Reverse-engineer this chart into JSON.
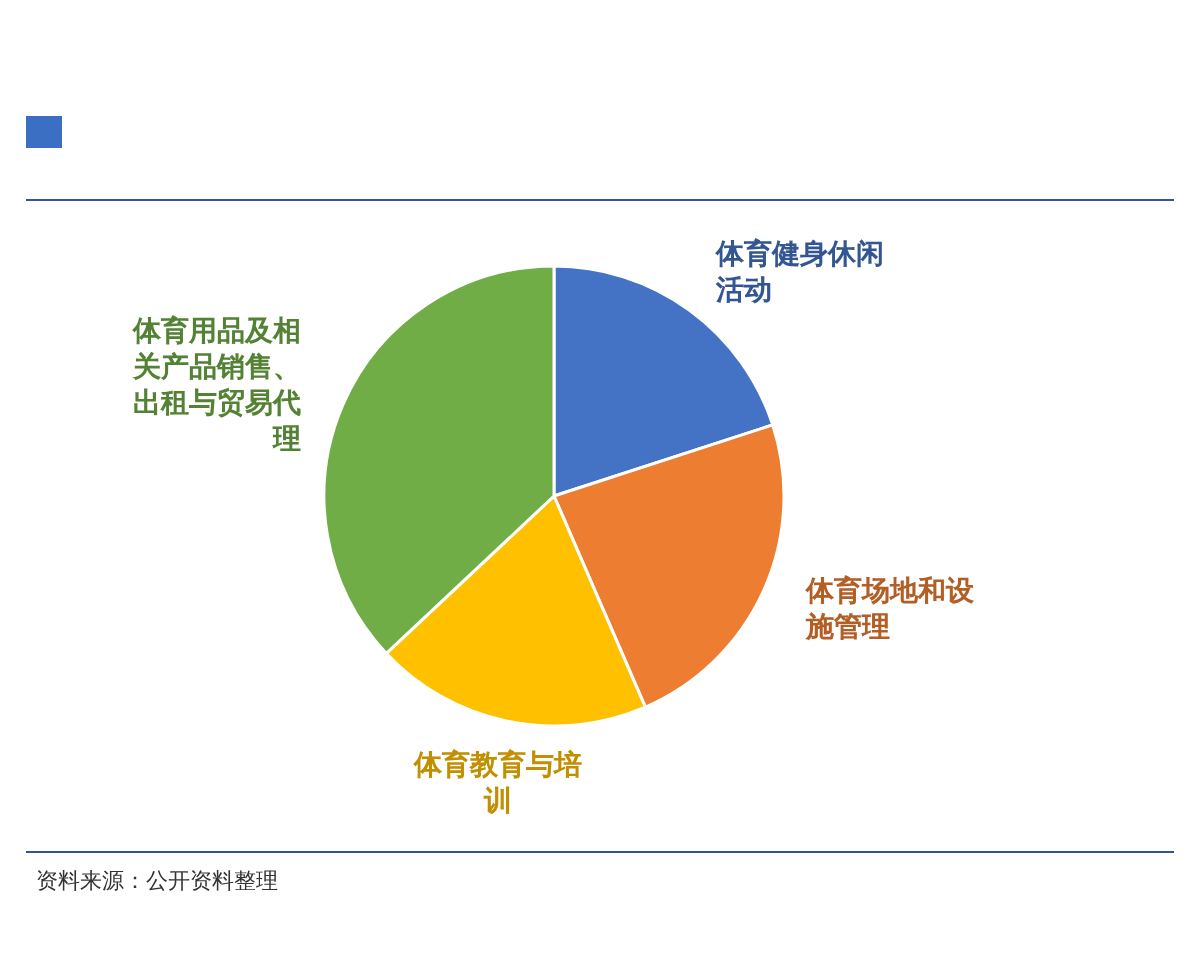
{
  "chart_data": {
    "type": "pie",
    "categories": [
      "体育健身休闲活动",
      "体育场地和设施管理",
      "体育教育与培训",
      "体育用品及相关产品销售、出租与贸易代理"
    ],
    "values": [
      20,
      23.5,
      19.5,
      37
    ],
    "colors": [
      "#4472c4",
      "#ed7d31",
      "#ffc000",
      "#70ad47"
    ],
    "annotations": [
      "资料来源：公开资料整理"
    ]
  }
}
